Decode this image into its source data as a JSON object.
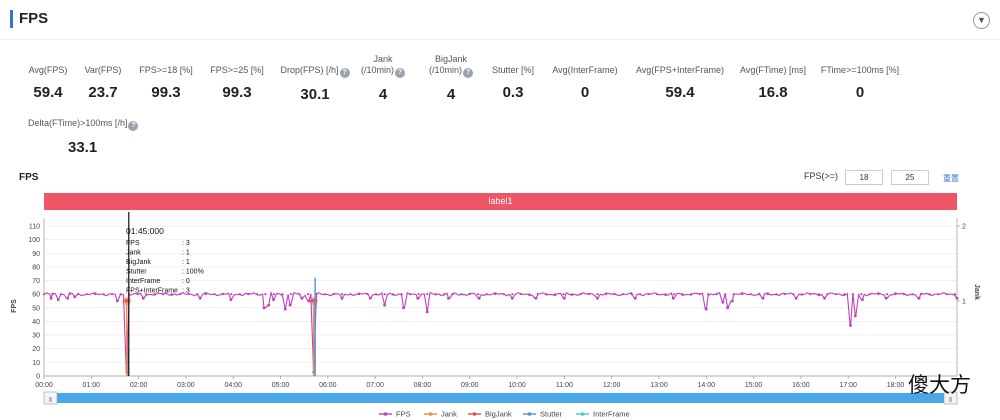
{
  "header": {
    "title": "FPS"
  },
  "icons": {
    "collapse": "chevron-down-icon",
    "help": "question-circle-icon"
  },
  "metrics": [
    {
      "label": "Avg(FPS)",
      "value": "59.4",
      "help": false
    },
    {
      "label": "Var(FPS)",
      "value": "23.7",
      "help": false
    },
    {
      "label": "FPS>=18 [%]",
      "value": "99.3",
      "help": false
    },
    {
      "label": "FPS>=25 [%]",
      "value": "99.3",
      "help": false
    },
    {
      "label": "Drop(FPS) [/h]",
      "value": "30.1",
      "help": true
    },
    {
      "label": "Jank\n(/10min)",
      "value": "4",
      "help": true
    },
    {
      "label": "BigJank\n(/10min)",
      "value": "4",
      "help": true
    },
    {
      "label": "Stutter [%]",
      "value": "0.3",
      "help": false
    },
    {
      "label": "Avg(InterFrame)",
      "value": "0",
      "help": false
    },
    {
      "label": "Avg(FPS+InterFrame)",
      "value": "59.4",
      "help": false
    },
    {
      "label": "Avg(FTime) [ms]",
      "value": "16.8",
      "help": false
    },
    {
      "label": "FTime>=100ms [%]",
      "value": "0",
      "help": false
    },
    {
      "label": "Delta(FTime)>100ms [/h]",
      "value": "33.1",
      "help": true
    }
  ],
  "chart_header": {
    "title": "FPS",
    "threshold_label": "FPS(>=)",
    "threshold_low": "18",
    "threshold_high": "25",
    "reset_label": "重置"
  },
  "band_label": "label1",
  "watermark": "傻大方",
  "tooltip": {
    "time": "01:45:000",
    "rows": [
      {
        "k": "FPS",
        "v": ": 3"
      },
      {
        "k": "Jank",
        "v": ": 1"
      },
      {
        "k": "BigJank",
        "v": ": 1"
      },
      {
        "k": "Stutter",
        "v": ": 100%"
      },
      {
        "k": "InterFrame",
        "v": ": 0"
      },
      {
        "k": "FPS+InterFrame",
        "v": ": 3"
      }
    ]
  },
  "colors": {
    "fps": "#c23fbd",
    "jank": "#f08a3c",
    "bigjank": "#e74c3c",
    "stutter": "#4a90e2",
    "interframe": "#4fc3e8",
    "band": "#ee5566",
    "slider": "#4aa8ea"
  },
  "chart_data": {
    "type": "line",
    "ylabel": "FPS",
    "y2label": "Jank",
    "ylim": [
      0,
      110
    ],
    "y2lim": [
      0,
      2
    ],
    "y_ticks": [
      "0",
      "10",
      "20",
      "30",
      "40",
      "50",
      "60",
      "70",
      "80",
      "90",
      "100",
      "110"
    ],
    "y2_ticks": [
      "1",
      "2"
    ],
    "x_ticks": [
      "00:00",
      "01:00",
      "02:00",
      "03:00",
      "04:00",
      "05:00",
      "06:00",
      "07:00",
      "08:00",
      "09:00",
      "10:00",
      "11:00",
      "12:00",
      "13:00",
      "14:00",
      "15:00",
      "16:00",
      "17:00",
      "18:00"
    ],
    "legend": [
      "FPS",
      "Jank",
      "BigJank",
      "Stutter",
      "InterFrame"
    ],
    "legend_position": "bottom",
    "grid": true,
    "series": [
      {
        "name": "FPS",
        "baseline": 60,
        "dips": [
          {
            "t": 0.15,
            "v": 57
          },
          {
            "t": 0.3,
            "v": 56
          },
          {
            "t": 0.5,
            "v": 57
          },
          {
            "t": 0.65,
            "v": 58
          },
          {
            "t": 1.55,
            "v": 55
          },
          {
            "t": 1.75,
            "v": 3
          },
          {
            "t": 2.1,
            "v": 57
          },
          {
            "t": 3.3,
            "v": 57
          },
          {
            "t": 3.95,
            "v": 56
          },
          {
            "t": 4.65,
            "v": 50
          },
          {
            "t": 4.75,
            "v": 52
          },
          {
            "t": 4.85,
            "v": 56
          },
          {
            "t": 5.1,
            "v": 49
          },
          {
            "t": 5.2,
            "v": 52
          },
          {
            "t": 5.45,
            "v": 57
          },
          {
            "t": 5.6,
            "v": 55
          },
          {
            "t": 5.7,
            "v": 3
          },
          {
            "t": 6.3,
            "v": 57
          },
          {
            "t": 6.9,
            "v": 57
          },
          {
            "t": 7.2,
            "v": 52
          },
          {
            "t": 7.6,
            "v": 50
          },
          {
            "t": 7.9,
            "v": 57
          },
          {
            "t": 8.1,
            "v": 47
          },
          {
            "t": 8.55,
            "v": 57
          },
          {
            "t": 9.2,
            "v": 57
          },
          {
            "t": 9.9,
            "v": 57
          },
          {
            "t": 10.4,
            "v": 57
          },
          {
            "t": 11.0,
            "v": 57
          },
          {
            "t": 11.7,
            "v": 57
          },
          {
            "t": 12.5,
            "v": 57
          },
          {
            "t": 13.3,
            "v": 57
          },
          {
            "t": 14.0,
            "v": 49
          },
          {
            "t": 14.35,
            "v": 54
          },
          {
            "t": 14.45,
            "v": 50
          },
          {
            "t": 14.55,
            "v": 55
          },
          {
            "t": 15.2,
            "v": 57
          },
          {
            "t": 15.9,
            "v": 57
          },
          {
            "t": 16.5,
            "v": 57
          },
          {
            "t": 17.05,
            "v": 37
          },
          {
            "t": 17.15,
            "v": 44
          },
          {
            "t": 17.3,
            "v": 56
          },
          {
            "t": 17.8,
            "v": 57
          },
          {
            "t": 18.5,
            "v": 57
          },
          {
            "t": 19.3,
            "v": 57
          }
        ]
      },
      {
        "name": "Jank",
        "events": [
          1.75,
          5.7
        ]
      },
      {
        "name": "BigJank",
        "events": [
          1.75,
          5.7
        ]
      },
      {
        "name": "Stutter",
        "events": [
          {
            "t": 1.75,
            "v": 20
          },
          {
            "t": 5.7,
            "v": 72
          }
        ]
      },
      {
        "name": "InterFrame",
        "events": []
      }
    ]
  }
}
